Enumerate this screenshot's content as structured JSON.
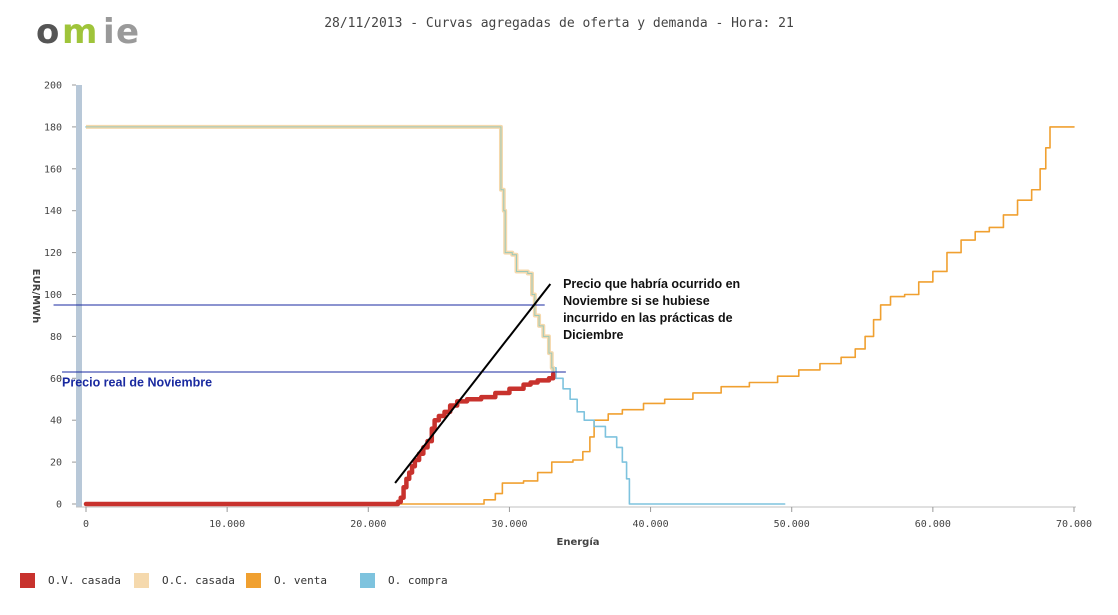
{
  "brand": {
    "logo_letters": [
      "o",
      "m",
      "i",
      "e"
    ],
    "colors": [
      "#555555",
      "#9fc43a",
      "#999999",
      "#9a9a9a"
    ]
  },
  "chart_data": {
    "type": "line",
    "title": "28/11/2013 - Curvas agregadas de oferta y demanda - Hora: 21",
    "xlabel": "Energía",
    "ylabel": "EUR/MWh",
    "xlim": [
      0,
      70000
    ],
    "ylim": [
      0,
      200
    ],
    "x_ticks": [
      0,
      10000,
      20000,
      30000,
      40000,
      50000,
      60000,
      70000
    ],
    "x_tick_labels": [
      "0",
      "10.000",
      "20.000",
      "30.000",
      "40.000",
      "50.000",
      "60.000",
      "70.000"
    ],
    "y_ticks": [
      0,
      20,
      40,
      60,
      80,
      100,
      120,
      140,
      160,
      180,
      200
    ],
    "y_tick_labels": [
      "0",
      "20",
      "40",
      "60",
      "80",
      "100",
      "120",
      "140",
      "160",
      "180",
      "200"
    ],
    "grid": false,
    "legend_position": "bottom-left",
    "series": [
      {
        "name": "O.V. casada",
        "color": "#c8322d",
        "points": [
          [
            0,
            0
          ],
          [
            21800,
            0
          ],
          [
            22100,
            1
          ],
          [
            22300,
            3
          ],
          [
            22500,
            8
          ],
          [
            22700,
            12
          ],
          [
            22900,
            15
          ],
          [
            23100,
            18
          ],
          [
            23300,
            21
          ],
          [
            23600,
            24
          ],
          [
            23900,
            27
          ],
          [
            24200,
            30
          ],
          [
            24500,
            36
          ],
          [
            24700,
            40
          ],
          [
            25000,
            42
          ],
          [
            25400,
            44
          ],
          [
            25800,
            47
          ],
          [
            26300,
            49
          ],
          [
            27000,
            50
          ],
          [
            28000,
            51
          ],
          [
            29000,
            53
          ],
          [
            30000,
            55
          ],
          [
            31000,
            57
          ],
          [
            31500,
            58
          ],
          [
            32000,
            59
          ],
          [
            32800,
            60
          ],
          [
            33100,
            62
          ]
        ]
      },
      {
        "name": "O.C. casada",
        "color": "#f5d9ad",
        "points": [
          [
            0,
            180
          ],
          [
            29200,
            180
          ],
          [
            29400,
            150
          ],
          [
            29600,
            140
          ],
          [
            29700,
            120
          ],
          [
            30200,
            119
          ],
          [
            30500,
            111
          ],
          [
            31300,
            110
          ],
          [
            31600,
            100
          ],
          [
            31800,
            90
          ],
          [
            32100,
            85
          ],
          [
            32400,
            80
          ],
          [
            32800,
            72
          ],
          [
            33000,
            65
          ],
          [
            33100,
            62
          ]
        ]
      },
      {
        "name": "O. venta",
        "color": "#f0a030",
        "points": [
          [
            0,
            0
          ],
          [
            27500,
            0
          ],
          [
            28200,
            2
          ],
          [
            29000,
            5
          ],
          [
            29500,
            10
          ],
          [
            31000,
            11
          ],
          [
            32000,
            15
          ],
          [
            33000,
            20
          ],
          [
            34500,
            21
          ],
          [
            35200,
            25
          ],
          [
            35700,
            32
          ],
          [
            36000,
            40
          ],
          [
            37000,
            43
          ],
          [
            38000,
            45
          ],
          [
            39500,
            48
          ],
          [
            41000,
            50
          ],
          [
            43000,
            53
          ],
          [
            45000,
            56
          ],
          [
            47000,
            58
          ],
          [
            49000,
            61
          ],
          [
            50500,
            64
          ],
          [
            52000,
            67
          ],
          [
            53500,
            70
          ],
          [
            54500,
            74
          ],
          [
            55200,
            80
          ],
          [
            55800,
            88
          ],
          [
            56300,
            95
          ],
          [
            57000,
            99
          ],
          [
            58000,
            100
          ],
          [
            59000,
            106
          ],
          [
            60000,
            111
          ],
          [
            61000,
            120
          ],
          [
            62000,
            126
          ],
          [
            63000,
            130
          ],
          [
            64000,
            132
          ],
          [
            65000,
            138
          ],
          [
            66000,
            145
          ],
          [
            67000,
            150
          ],
          [
            67600,
            160
          ],
          [
            68000,
            170
          ],
          [
            68300,
            180
          ],
          [
            70000,
            180
          ]
        ]
      },
      {
        "name": "O. compra",
        "color": "#7ec3de",
        "points": [
          [
            0,
            180
          ],
          [
            29200,
            180
          ],
          [
            29400,
            150
          ],
          [
            29600,
            140
          ],
          [
            29700,
            120
          ],
          [
            30200,
            119
          ],
          [
            30500,
            111
          ],
          [
            31300,
            110
          ],
          [
            31600,
            100
          ],
          [
            31800,
            90
          ],
          [
            32100,
            85
          ],
          [
            32400,
            80
          ],
          [
            32800,
            72
          ],
          [
            33000,
            65
          ],
          [
            33300,
            60
          ],
          [
            33800,
            55
          ],
          [
            34300,
            50
          ],
          [
            34800,
            44
          ],
          [
            35300,
            40
          ],
          [
            36000,
            37
          ],
          [
            36800,
            32
          ],
          [
            37600,
            27
          ],
          [
            38000,
            20
          ],
          [
            38300,
            12
          ],
          [
            38500,
            0
          ],
          [
            49500,
            0
          ]
        ]
      }
    ],
    "reference_lines": [
      {
        "y": 95,
        "x_range": [
          -2300,
          32500
        ],
        "color": "#1a2aa0"
      },
      {
        "y": 63,
        "x_range": [
          -1700,
          34000
        ],
        "color": "#1a2aa0"
      }
    ],
    "trend_line": {
      "points": [
        [
          21900,
          10
        ],
        [
          32900,
          105
        ]
      ],
      "color": "#000000"
    },
    "annotations": [
      {
        "lines": [
          "Precio que habría ocurrido en",
          "Noviembre si se hubiese",
          "incurrido en las prácticas de",
          "Diciembre"
        ],
        "anchor": [
          33800,
          103
        ]
      },
      {
        "lines": [
          "Precio real de Noviembre"
        ],
        "anchor": [
          -1700,
          56
        ],
        "color": "#1a2aa0"
      }
    ]
  }
}
